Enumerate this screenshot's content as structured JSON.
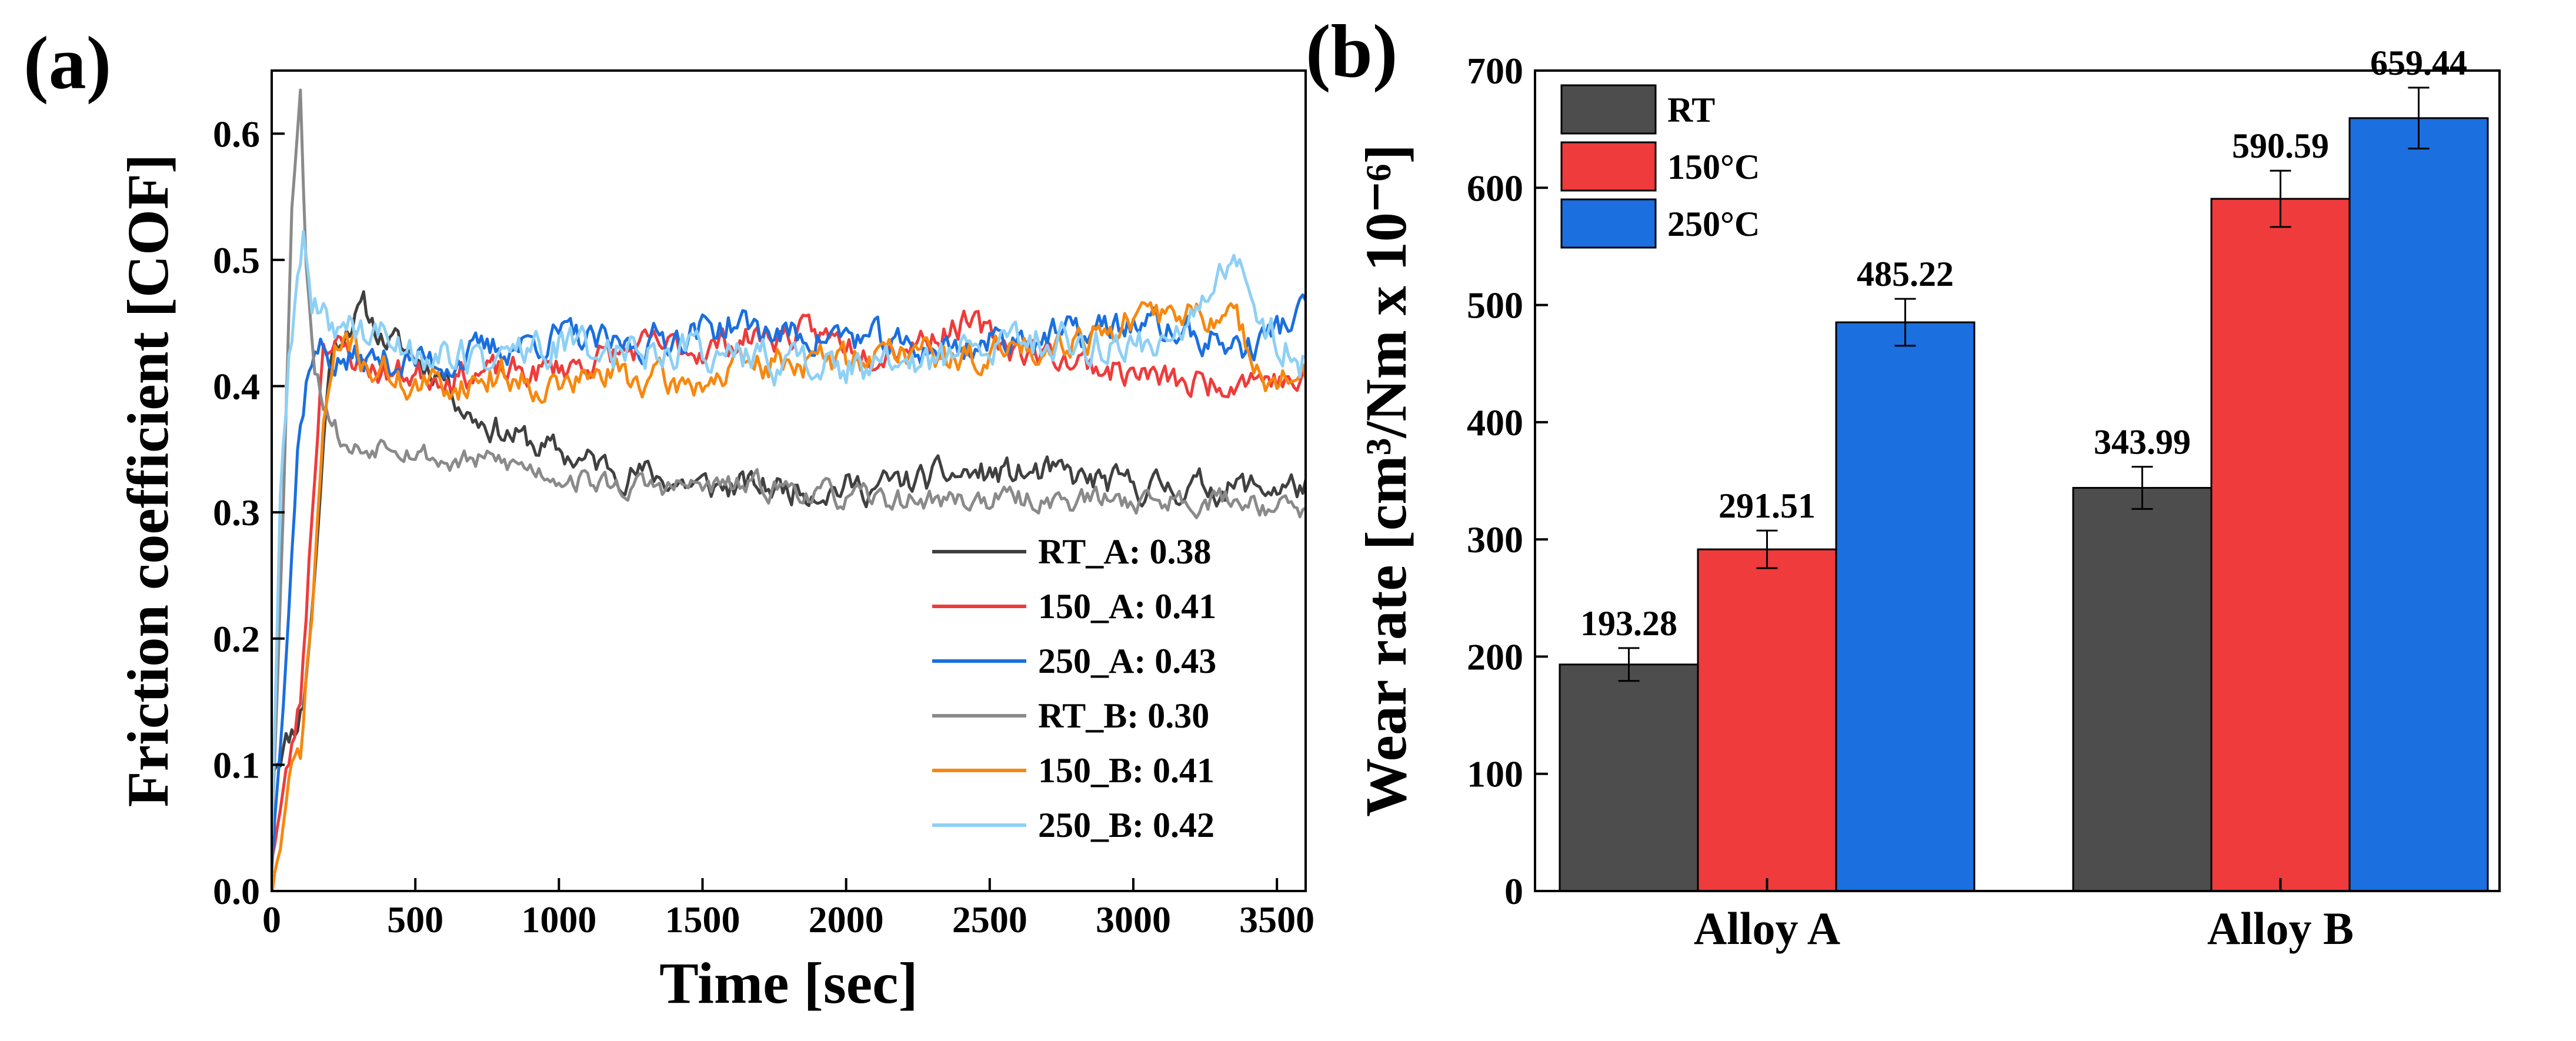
{
  "chart_data": [
    {
      "panel_label": "(a)",
      "type": "line",
      "xlabel": "Time [sec]",
      "ylabel": "Friction coefficient [COF]",
      "xlim": [
        0,
        3600
      ],
      "ylim": [
        0,
        0.65
      ],
      "xticks": [
        0,
        500,
        1000,
        1500,
        2000,
        2500,
        3000,
        3500
      ],
      "yticks": [
        0.0,
        0.1,
        0.2,
        0.3,
        0.4,
        0.5,
        0.6
      ],
      "x_tick_labels": [
        "0",
        "500",
        "1000",
        "1500",
        "2000",
        "2500",
        "3000",
        "3500"
      ],
      "y_tick_labels": [
        "0.0",
        "0.1",
        "0.2",
        "0.3",
        "0.4",
        "0.5",
        "0.6"
      ],
      "legend_position": "bottom-right",
      "series": [
        {
          "name": "RT_A: 0.38",
          "color": "#404040",
          "noise": 0.01,
          "seed": 11,
          "x": [
            0,
            50,
            80,
            110,
            150,
            200,
            260,
            320,
            380,
            450,
            520,
            600,
            680,
            760,
            850,
            950,
            1100,
            1300,
            1500,
            1800,
            2100,
            2400,
            2700,
            3000,
            3300,
            3600
          ],
          "y": [
            0.1,
            0.12,
            0.13,
            0.15,
            0.25,
            0.42,
            0.45,
            0.46,
            0.44,
            0.43,
            0.42,
            0.41,
            0.38,
            0.37,
            0.36,
            0.35,
            0.34,
            0.33,
            0.32,
            0.32,
            0.32,
            0.33,
            0.33,
            0.32,
            0.32,
            0.32
          ]
        },
        {
          "name": "150_A: 0.41",
          "color": "#ef3b3b",
          "noise": 0.01,
          "seed": 23,
          "x": [
            0,
            60,
            100,
            140,
            180,
            230,
            300,
            400,
            500,
            700,
            900,
            1100,
            1300,
            1500,
            1700,
            1900,
            2100,
            2300,
            2400,
            2600,
            2800,
            3000,
            3200,
            3400,
            3600
          ],
          "y": [
            0.03,
            0.1,
            0.15,
            0.3,
            0.44,
            0.43,
            0.42,
            0.41,
            0.41,
            0.41,
            0.41,
            0.42,
            0.43,
            0.43,
            0.44,
            0.44,
            0.43,
            0.44,
            0.45,
            0.43,
            0.42,
            0.41,
            0.4,
            0.41,
            0.4
          ]
        },
        {
          "name": "250_A: 0.43",
          "color": "#1a6fe0",
          "noise": 0.011,
          "seed": 37,
          "x": [
            0,
            50,
            90,
            130,
            170,
            220,
            300,
            400,
            600,
            800,
            1000,
            1200,
            1400,
            1600,
            1800,
            2000,
            2200,
            2400,
            2600,
            2800,
            3000,
            3200,
            3400,
            3600
          ],
          "y": [
            0.02,
            0.2,
            0.35,
            0.42,
            0.43,
            0.42,
            0.42,
            0.42,
            0.42,
            0.43,
            0.44,
            0.43,
            0.44,
            0.45,
            0.44,
            0.44,
            0.43,
            0.43,
            0.44,
            0.44,
            0.45,
            0.44,
            0.43,
            0.46
          ]
        },
        {
          "name": "RT_B: 0.30",
          "color": "#8a8a8a",
          "noise": 0.008,
          "seed": 53,
          "x": [
            0,
            40,
            70,
            100,
            120,
            150,
            180,
            220,
            260,
            330,
            400,
            500,
            600,
            800,
            1000,
            1200,
            1400,
            1600,
            1800,
            2000,
            2200,
            2500,
            2800,
            3100,
            3400,
            3600
          ],
          "y": [
            0.05,
            0.3,
            0.55,
            0.63,
            0.5,
            0.42,
            0.39,
            0.37,
            0.35,
            0.35,
            0.36,
            0.35,
            0.34,
            0.34,
            0.33,
            0.32,
            0.32,
            0.32,
            0.32,
            0.31,
            0.31,
            0.31,
            0.31,
            0.31,
            0.31,
            0.3
          ]
        },
        {
          "name": "150_B: 0.41",
          "color": "#f7880f",
          "noise": 0.011,
          "seed": 71,
          "x": [
            0,
            40,
            70,
            100,
            140,
            180,
            220,
            260,
            320,
            400,
            500,
            600,
            800,
            1000,
            1200,
            1400,
            1600,
            1800,
            2000,
            2200,
            2400,
            2600,
            2800,
            3000,
            3200,
            3350,
            3500,
            3600
          ],
          "y": [
            0.0,
            0.05,
            0.09,
            0.11,
            0.22,
            0.37,
            0.42,
            0.44,
            0.42,
            0.41,
            0.4,
            0.4,
            0.41,
            0.4,
            0.41,
            0.4,
            0.41,
            0.42,
            0.42,
            0.43,
            0.42,
            0.43,
            0.44,
            0.45,
            0.46,
            0.45,
            0.4,
            0.41
          ]
        },
        {
          "name": "250_B: 0.42",
          "color": "#8ed0f5",
          "noise": 0.013,
          "seed": 89,
          "x": [
            0,
            30,
            60,
            90,
            110,
            140,
            180,
            250,
            350,
            500,
            700,
            900,
            1100,
            1300,
            1500,
            1700,
            1900,
            2100,
            2300,
            2500,
            2700,
            2900,
            3100,
            3250,
            3350,
            3450,
            3600
          ],
          "y": [
            0.05,
            0.3,
            0.42,
            0.48,
            0.52,
            0.46,
            0.45,
            0.45,
            0.44,
            0.43,
            0.42,
            0.43,
            0.43,
            0.43,
            0.43,
            0.42,
            0.42,
            0.41,
            0.42,
            0.43,
            0.44,
            0.43,
            0.44,
            0.46,
            0.5,
            0.45,
            0.42
          ]
        }
      ]
    },
    {
      "panel_label": "(b)",
      "type": "bar",
      "xlabel": "",
      "ylabel": "Wear rate [cm³/Nm x 10⁻⁶]",
      "ylim": [
        0,
        700
      ],
      "yticks": [
        0,
        100,
        200,
        300,
        400,
        500,
        600,
        700
      ],
      "y_tick_labels": [
        "0",
        "100",
        "200",
        "300",
        "400",
        "500",
        "600",
        "700"
      ],
      "categories": [
        "Alloy A",
        "Alloy B"
      ],
      "legend_position": "top-left",
      "series": [
        {
          "name": "RT",
          "color": "#4d4d4d",
          "values": [
            193.28,
            343.99
          ],
          "errors": [
            14,
            18
          ],
          "labels": [
            "193.28",
            "343.99"
          ]
        },
        {
          "name": "150°C",
          "color": "#ef3b3b",
          "values": [
            291.51,
            590.59
          ],
          "errors": [
            16,
            24
          ],
          "labels": [
            "291.51",
            "590.59"
          ]
        },
        {
          "name": "250°C",
          "color": "#1b6fdf",
          "values": [
            485.22,
            659.44
          ],
          "errors": [
            20,
            26
          ],
          "labels": [
            "485.22",
            "659.44"
          ]
        }
      ]
    }
  ]
}
